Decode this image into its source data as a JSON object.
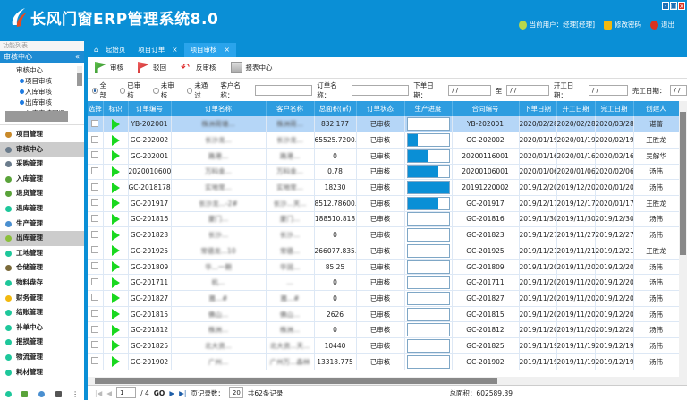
{
  "app": {
    "title": "长风门窗ERP管理系统8.0",
    "current_user": "当前用户：经理[经理]",
    "change_password": "修改密码",
    "logout": "退出"
  },
  "left": {
    "panel_label": "功能列表",
    "section": "审核中心",
    "tree_root": "审核中心",
    "tree_items": [
      "项目审核",
      "入库审核",
      "出库审核",
      "入库审核回退"
    ],
    "menu": [
      {
        "label": "项目管理",
        "color": "#c98a2a"
      },
      {
        "label": "审核中心",
        "color": "#6b7c8c",
        "selected": true
      },
      {
        "label": "采购管理",
        "color": "#6b7c8c"
      },
      {
        "label": "入库管理",
        "color": "#5aa33a"
      },
      {
        "label": "退货管理",
        "color": "#5aa33a"
      },
      {
        "label": "退库管理",
        "color": "#1ec79b"
      },
      {
        "label": "生产管理",
        "color": "#4a8fd0"
      },
      {
        "label": "出库管理",
        "color": "#8bbf3a",
        "selected": true
      },
      {
        "label": "工地管理",
        "color": "#1ec79b"
      },
      {
        "label": "仓储管理",
        "color": "#7a6a3a"
      },
      {
        "label": "物料盘存",
        "color": "#1ec79b"
      },
      {
        "label": "财务管理",
        "color": "#f2b90f"
      },
      {
        "label": "结账管理",
        "color": "#1ec79b"
      },
      {
        "label": "补单中心",
        "color": "#1ec79b"
      },
      {
        "label": "报损管理",
        "color": "#1ec79b"
      },
      {
        "label": "物流管理",
        "color": "#1ec79b"
      },
      {
        "label": "耗材管理",
        "color": "#1ec79b"
      }
    ]
  },
  "tabs": [
    {
      "label": "起始页"
    },
    {
      "label": "项目订单"
    },
    {
      "label": "项目审核",
      "active": true
    }
  ],
  "toolbar": {
    "approve": "审核",
    "reject": "驳回",
    "unapprove": "反审核",
    "report": "报表中心"
  },
  "filter": {
    "radios": [
      "全部",
      "已审核",
      "未审核",
      "未通过"
    ],
    "selected": "全部",
    "customer_label": "客户名称：",
    "order_label": "订单名称：",
    "order_date_label": "下单日期：",
    "to_label": "至",
    "start_date_label": "开工日期：",
    "finish_date_label": "完工日期：",
    "date_placeholder": " /  / "
  },
  "table": {
    "columns": [
      "选择",
      "标识",
      "订单编号",
      "订单名称",
      "客户名称",
      "总面积(㎡)",
      "订单状态",
      "生产进度",
      "合同编号",
      "下单日期",
      "开工日期",
      "完工日期",
      "创建人"
    ],
    "rows": [
      {
        "no": "YB-202001",
        "name": "株洲荷塘...",
        "customer": "株洲荷...",
        "area": "832.177",
        "status": "已审核",
        "progress": 0,
        "contract": "YB-202001",
        "order": "2020/02/28",
        "start": "2020/02/28",
        "finish": "2020/03/28",
        "creator": "谌蕾"
      },
      {
        "no": "GC-202002",
        "name": "长沙龙...",
        "customer": "长沙龙...",
        "area": "65525.7200...",
        "status": "已审核",
        "progress": 25,
        "contract": "GC-202002",
        "order": "2020/01/19",
        "start": "2020/01/19",
        "finish": "2020/02/19",
        "creator": "王胜龙"
      },
      {
        "no": "GC-202001",
        "name": "路港...",
        "customer": "路港...",
        "area": "0",
        "status": "已审核",
        "progress": 50,
        "contract": "20200116001",
        "order": "2020/01/16",
        "start": "2020/01/16",
        "finish": "2020/02/16",
        "creator": "吴解华"
      },
      {
        "no": "20200106001",
        "name": "万科金...",
        "customer": "万科金...",
        "area": "0.78",
        "status": "已审核",
        "progress": 75,
        "contract": "20200106001",
        "order": "2020/01/06",
        "start": "2020/01/06",
        "finish": "2020/02/06",
        "creator": "汤伟"
      },
      {
        "no": "GC-2018178",
        "name": "实地常...",
        "customer": "实地常...",
        "area": "18230",
        "status": "已审核",
        "progress": 100,
        "contract": "20191220002",
        "order": "2019/12/20",
        "start": "2019/12/20",
        "finish": "2020/01/20",
        "creator": "汤伟"
      },
      {
        "no": "GC-201917",
        "name": "长沙龙...-2#",
        "customer": "长沙...天...",
        "area": "8512.78600...",
        "status": "已审核",
        "progress": 75,
        "contract": "GC-201917",
        "order": "2019/12/17",
        "start": "2019/12/17",
        "finish": "2020/01/17",
        "creator": "王胜龙"
      },
      {
        "no": "GC-201816",
        "name": "厦门...",
        "customer": "厦门...",
        "area": "188510.818",
        "status": "已审核",
        "progress": 0,
        "contract": "GC-201816",
        "order": "2019/11/30",
        "start": "2019/11/30",
        "finish": "2019/12/30",
        "creator": "汤伟"
      },
      {
        "no": "GC-201823",
        "name": "长沙...",
        "customer": "长沙...",
        "area": "0",
        "status": "已审核",
        "progress": 0,
        "contract": "GC-201823",
        "order": "2019/11/27",
        "start": "2019/11/27",
        "finish": "2019/12/27",
        "creator": "汤伟"
      },
      {
        "no": "GC-201925",
        "name": "常德龙...10",
        "customer": "常德...",
        "area": "266077.835...",
        "status": "已审核",
        "progress": 0,
        "contract": "GC-201925",
        "order": "2019/11/21",
        "start": "2019/11/21",
        "finish": "2019/12/21",
        "creator": "王胜龙"
      },
      {
        "no": "GC-201809",
        "name": "华...一期",
        "customer": "华润...",
        "area": "85.25",
        "status": "已审核",
        "progress": 0,
        "contract": "GC-201809",
        "order": "2019/11/20",
        "start": "2019/11/20",
        "finish": "2019/12/20",
        "creator": "汤伟"
      },
      {
        "no": "GC-201711",
        "name": "杭...",
        "customer": "...",
        "area": "0",
        "status": "已审核",
        "progress": 0,
        "contract": "GC-201711",
        "order": "2019/11/20",
        "start": "2019/11/20",
        "finish": "2019/12/20",
        "creator": "汤伟"
      },
      {
        "no": "GC-201827",
        "name": "雅...#",
        "customer": "雅...#",
        "area": "0",
        "status": "已审核",
        "progress": 0,
        "contract": "GC-201827",
        "order": "2019/11/20",
        "start": "2019/11/20",
        "finish": "2019/12/20",
        "creator": "汤伟"
      },
      {
        "no": "GC-201815",
        "name": "佛山...",
        "customer": "佛山...",
        "area": "2626",
        "status": "已审核",
        "progress": 0,
        "contract": "GC-201815",
        "order": "2019/11/20",
        "start": "2019/11/20",
        "finish": "2019/12/20",
        "creator": "汤伟"
      },
      {
        "no": "GC-201812",
        "name": "株洲...",
        "customer": "株洲...",
        "area": "0",
        "status": "已审核",
        "progress": 0,
        "contract": "GC-201812",
        "order": "2019/11/20",
        "start": "2019/11/20",
        "finish": "2019/12/20",
        "creator": "汤伟"
      },
      {
        "no": "GC-201825",
        "name": "北大资...",
        "customer": "北大资...天...",
        "area": "10440",
        "status": "已审核",
        "progress": 0,
        "contract": "GC-201825",
        "order": "2019/11/19",
        "start": "2019/11/19",
        "finish": "2019/12/19",
        "creator": "汤伟"
      },
      {
        "no": "GC-201902",
        "name": "广州...",
        "customer": "广州万...森林",
        "area": "13318.775",
        "status": "已审核",
        "progress": 0,
        "contract": "GC-201902",
        "order": "2019/11/19",
        "start": "2019/11/19",
        "finish": "2019/12/19",
        "creator": "汤伟"
      }
    ]
  },
  "pager": {
    "page": "1",
    "of": "/ 4",
    "go": "GO",
    "page_size_label": "页记录数：",
    "page_size": "20",
    "total_records": "共62条记录",
    "total_area": "总面积：602589.39"
  },
  "colors": {
    "header": "#0a8fd6",
    "table_header": "#2e9de0",
    "selected_row": "#b5d6f7",
    "progress": "#0a8fd6",
    "flag": "#19d81f"
  }
}
